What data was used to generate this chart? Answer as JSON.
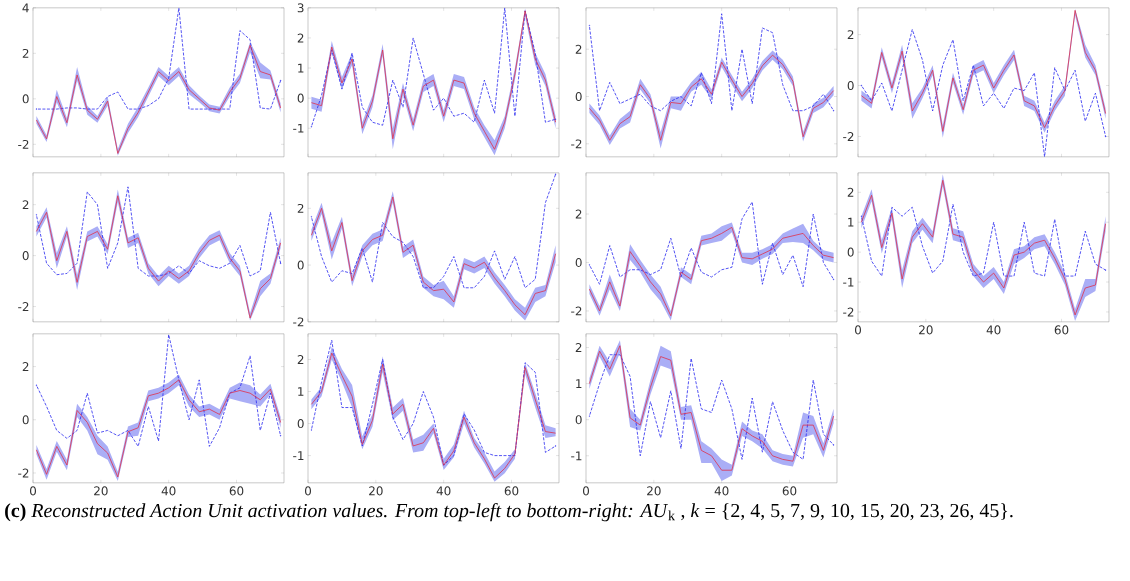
{
  "chart_data": [
    {
      "type": "line",
      "x": [
        1,
        4,
        7,
        10,
        13,
        16,
        19,
        22,
        25,
        28,
        31,
        34,
        37,
        40,
        43,
        46,
        49,
        52,
        55,
        58,
        61,
        64,
        67,
        70,
        73
      ],
      "xlim": [
        0,
        74
      ],
      "xticks": [
        0,
        20,
        40,
        60
      ],
      "ylim": [
        -2.55,
        4
      ],
      "yticks": [
        -2,
        0,
        2,
        4
      ],
      "tick_labels": "y",
      "series": [
        {
          "color": "#2828f0",
          "line_style": "dashed",
          "values": [
            -0.45,
            -0.45,
            -0.45,
            -0.4,
            -0.4,
            -0.45,
            -0.45,
            0.1,
            0.3,
            -0.45,
            -0.45,
            -0.3,
            0.0,
            0.9,
            4.0,
            -0.45,
            -0.45,
            -0.45,
            -0.45,
            -0.45,
            3.0,
            2.6,
            -0.4,
            -0.45,
            0.8
          ]
        },
        {
          "color": "#e0304a",
          "values": [
            -0.93,
            -1.76,
            0.1,
            -1.05,
            1.05,
            -0.5,
            -0.9,
            -0.1,
            -2.4,
            -1.3,
            -0.6,
            0.3,
            1.2,
            0.8,
            1.2,
            0.4,
            0.0,
            -0.4,
            -0.5,
            0.3,
            0.9,
            2.35,
            1.2,
            1.05,
            -0.4
          ],
          "lower": [
            -1.1,
            -1.9,
            -0.15,
            -1.25,
            0.8,
            -0.7,
            -1.05,
            -0.3,
            -2.5,
            -1.5,
            -0.8,
            0.1,
            1.0,
            0.6,
            1.0,
            0.2,
            -0.15,
            -0.55,
            -0.65,
            0.1,
            0.7,
            2.05,
            0.9,
            0.85,
            -0.6
          ],
          "upper": [
            -0.75,
            -1.6,
            0.4,
            -0.85,
            1.4,
            -0.3,
            -0.75,
            0.1,
            -2.2,
            -1.1,
            -0.35,
            0.5,
            1.4,
            1.0,
            1.4,
            0.6,
            0.15,
            -0.25,
            -0.35,
            0.5,
            1.1,
            2.5,
            1.6,
            1.25,
            -0.2
          ]
        }
      ]
    },
    {
      "type": "line",
      "x": [
        1,
        4,
        7,
        10,
        13,
        16,
        19,
        22,
        25,
        28,
        31,
        34,
        37,
        40,
        43,
        46,
        49,
        52,
        55,
        58,
        61,
        64,
        67,
        70,
        73
      ],
      "xlim": [
        0,
        74
      ],
      "xticks": [
        0,
        20,
        40,
        60
      ],
      "ylim": [
        -1.95,
        3
      ],
      "yticks": [
        -1,
        0,
        1,
        2,
        3
      ],
      "tick_labels": "y",
      "series": [
        {
          "color": "#2828f0",
          "line_style": "dashed",
          "values": [
            -0.95,
            0.1,
            1.6,
            0.3,
            1.5,
            -0.3,
            -0.8,
            -0.9,
            0.6,
            -0.3,
            2.0,
            0.8,
            -0.4,
            0.0,
            -0.6,
            -0.5,
            -0.8,
            0.6,
            -0.5,
            3.0,
            -0.6,
            2.9,
            1.5,
            -0.8,
            -0.7
          ]
        },
        {
          "color": "#e0304a",
          "values": [
            -0.15,
            -0.25,
            1.7,
            0.5,
            1.3,
            -1.0,
            -0.1,
            1.6,
            -1.35,
            0.3,
            -0.9,
            0.4,
            0.6,
            -0.6,
            0.6,
            0.5,
            -0.5,
            -1.1,
            -1.7,
            -0.8,
            0.8,
            2.9,
            1.3,
            0.6,
            -0.8
          ],
          "lower": [
            -0.35,
            -0.45,
            1.5,
            0.3,
            1.1,
            -1.2,
            -0.3,
            1.4,
            -1.7,
            0.1,
            -1.1,
            0.2,
            0.4,
            -0.8,
            0.4,
            0.3,
            -0.7,
            -1.3,
            -1.9,
            -1.0,
            0.6,
            2.7,
            1.1,
            0.4,
            -1.0
          ],
          "upper": [
            0.05,
            -0.05,
            1.9,
            0.7,
            1.5,
            -0.8,
            0.1,
            1.8,
            -1.0,
            0.5,
            -0.7,
            0.6,
            0.8,
            -0.4,
            0.8,
            0.7,
            -0.3,
            -0.9,
            -1.4,
            -0.6,
            1.0,
            2.98,
            1.5,
            0.8,
            -0.6
          ]
        }
      ]
    },
    {
      "type": "line",
      "x": [
        1,
        4,
        7,
        10,
        13,
        16,
        19,
        22,
        25,
        28,
        31,
        34,
        37,
        40,
        43,
        46,
        49,
        52,
        55,
        58,
        61,
        64,
        67,
        70,
        73
      ],
      "xlim": [
        0,
        74
      ],
      "xticks": [
        0,
        20,
        40,
        60
      ],
      "ylim": [
        -2.55,
        3.75
      ],
      "yticks": [
        -2,
        0,
        2
      ],
      "tick_labels": "y",
      "series": [
        {
          "color": "#2828f0",
          "line_style": "dashed",
          "values": [
            3.0,
            -0.6,
            0.6,
            -0.3,
            -0.1,
            0.1,
            -0.4,
            -0.6,
            -0.2,
            0.0,
            -0.4,
            1.0,
            -0.3,
            3.5,
            -0.6,
            2.0,
            -0.3,
            2.9,
            2.7,
            0.5,
            -0.6,
            -0.6,
            -0.4,
            0.1,
            -0.6
          ]
        },
        {
          "color": "#e0304a",
          "values": [
            -0.5,
            -1.0,
            -1.85,
            -1.15,
            -0.85,
            0.5,
            -0.1,
            -1.85,
            -0.25,
            -0.3,
            0.4,
            0.75,
            0.1,
            1.45,
            0.7,
            0.0,
            0.55,
            1.3,
            1.75,
            1.35,
            0.65,
            -1.7,
            -0.5,
            -0.25,
            0.25
          ],
          "lower": [
            -0.7,
            -1.2,
            -2.05,
            -1.35,
            -1.1,
            0.3,
            -0.3,
            -2.2,
            -0.5,
            -0.6,
            0.2,
            0.5,
            -0.1,
            1.25,
            0.5,
            -0.2,
            0.35,
            1.1,
            1.55,
            1.15,
            0.45,
            -1.9,
            -0.7,
            -0.45,
            0.05
          ],
          "upper": [
            -0.3,
            -0.8,
            -1.65,
            -0.95,
            -0.6,
            0.75,
            0.1,
            -1.5,
            0.0,
            0.0,
            0.6,
            1.05,
            0.3,
            1.65,
            0.9,
            0.2,
            0.75,
            1.5,
            1.95,
            1.55,
            0.85,
            -1.5,
            -0.3,
            -0.05,
            0.45
          ]
        }
      ]
    },
    {
      "type": "line",
      "x": [
        1,
        4,
        7,
        10,
        13,
        16,
        19,
        22,
        25,
        28,
        31,
        34,
        37,
        40,
        43,
        46,
        49,
        52,
        55,
        58,
        61,
        64,
        67,
        70,
        73
      ],
      "xlim": [
        0,
        74
      ],
      "xticks": [
        0,
        20,
        40,
        60
      ],
      "ylim": [
        -2.8,
        3.05
      ],
      "yticks": [
        -2,
        0,
        2
      ],
      "tick_labels": "y",
      "series": [
        {
          "color": "#2828f0",
          "line_style": "dashed",
          "values": [
            0.0,
            -0.6,
            0.1,
            -1.0,
            0.6,
            2.2,
            1.0,
            -1.0,
            0.8,
            1.8,
            -0.6,
            0.8,
            -0.8,
            -0.3,
            -0.9,
            -0.1,
            -0.2,
            0.5,
            -2.8,
            0.7,
            -0.2,
            0.6,
            -1.4,
            -0.3,
            -2.0
          ]
        },
        {
          "color": "#e0304a",
          "values": [
            -0.4,
            -0.7,
            1.3,
            -0.1,
            1.35,
            -1.0,
            -0.3,
            0.6,
            -1.8,
            0.3,
            -0.95,
            0.6,
            0.8,
            -0.1,
            0.6,
            1.2,
            -0.6,
            -0.8,
            -1.65,
            -0.8,
            -0.2,
            2.95,
            1.3,
            0.6,
            -1.1
          ],
          "lower": [
            -0.6,
            -0.9,
            1.1,
            -0.3,
            1.1,
            -1.3,
            -0.5,
            0.4,
            -2.05,
            0.1,
            -1.15,
            0.4,
            0.6,
            -0.3,
            0.4,
            1.0,
            -0.8,
            -1.0,
            -1.85,
            -1.0,
            -0.4,
            2.75,
            1.1,
            0.4,
            -1.3
          ],
          "upper": [
            -0.2,
            -0.5,
            1.5,
            0.1,
            1.6,
            -0.7,
            -0.1,
            0.8,
            -1.55,
            0.5,
            -0.75,
            0.8,
            1.0,
            0.1,
            0.8,
            1.4,
            -0.4,
            -0.6,
            -1.45,
            -0.6,
            0.0,
            3.0,
            1.6,
            0.8,
            -0.9
          ]
        }
      ]
    },
    {
      "type": "line",
      "x": [
        1,
        4,
        7,
        10,
        13,
        16,
        19,
        22,
        25,
        28,
        31,
        34,
        37,
        40,
        43,
        46,
        49,
        52,
        55,
        58,
        61,
        64,
        67,
        70,
        73
      ],
      "xlim": [
        0,
        74
      ],
      "xticks": [
        0,
        20,
        40,
        60
      ],
      "ylim": [
        -2.6,
        3.25
      ],
      "yticks": [
        -2,
        0,
        2
      ],
      "tick_labels": "y",
      "series": [
        {
          "color": "#2828f0",
          "line_style": "dashed",
          "values": [
            1.6,
            -0.3,
            -0.75,
            -0.7,
            -0.3,
            2.5,
            2.0,
            -0.5,
            0.5,
            2.7,
            -0.5,
            -0.8,
            -0.8,
            -0.7,
            -0.4,
            -0.7,
            -0.2,
            -0.4,
            -0.5,
            -0.3,
            0.4,
            -0.8,
            -0.6,
            1.7,
            -0.3
          ]
        },
        {
          "color": "#e0304a",
          "values": [
            0.95,
            1.7,
            -0.2,
            0.95,
            -1.05,
            0.75,
            0.95,
            0.25,
            2.35,
            0.5,
            0.7,
            -0.5,
            -1.0,
            -0.6,
            -0.9,
            -0.6,
            0.1,
            0.6,
            0.8,
            -0.1,
            -0.6,
            -2.45,
            -1.3,
            -0.9,
            0.5
          ],
          "lower": [
            0.75,
            1.5,
            -0.5,
            0.75,
            -1.35,
            0.55,
            0.75,
            0.05,
            2.1,
            0.3,
            0.5,
            -0.7,
            -1.2,
            -0.8,
            -1.1,
            -0.8,
            -0.1,
            0.4,
            0.6,
            -0.3,
            -0.8,
            -2.55,
            -1.6,
            -1.1,
            0.3
          ],
          "upper": [
            1.15,
            1.9,
            0.1,
            1.15,
            -0.75,
            0.95,
            1.15,
            0.45,
            2.6,
            0.7,
            0.9,
            -0.3,
            -0.8,
            -0.4,
            -0.7,
            -0.4,
            0.3,
            0.8,
            1.0,
            0.1,
            -0.4,
            -2.25,
            -1.0,
            -0.7,
            0.7
          ]
        }
      ]
    },
    {
      "type": "line",
      "x": [
        1,
        4,
        7,
        10,
        13,
        16,
        19,
        22,
        25,
        28,
        31,
        34,
        37,
        40,
        43,
        46,
        49,
        52,
        55,
        58,
        61,
        64,
        67,
        70,
        73
      ],
      "xlim": [
        0,
        74
      ],
      "xticks": [
        0,
        20,
        40,
        60
      ],
      "ylim": [
        -2,
        3.25
      ],
      "yticks": [
        -2,
        0,
        2
      ],
      "tick_labels": "y",
      "series": [
        {
          "color": "#2828f0",
          "line_style": "dashed",
          "values": [
            1.7,
            0.3,
            -0.6,
            -0.2,
            -0.3,
            0.6,
            -0.6,
            1.5,
            1.0,
            0.8,
            0.3,
            -0.8,
            -0.8,
            -0.4,
            0.3,
            -0.8,
            -0.8,
            -0.4,
            0.5,
            -0.5,
            0.3,
            -0.8,
            -0.5,
            2.2,
            3.2
          ]
        },
        {
          "color": "#e0304a",
          "values": [
            1.05,
            2.0,
            0.5,
            1.5,
            -0.55,
            0.5,
            0.9,
            1.05,
            2.4,
            0.45,
            0.7,
            -0.6,
            -0.9,
            -0.85,
            -1.3,
            0.05,
            -0.1,
            0.1,
            -0.45,
            -0.9,
            -1.4,
            -1.75,
            -1.0,
            -0.9,
            0.4
          ],
          "lower": [
            0.85,
            1.8,
            0.2,
            1.3,
            -0.75,
            0.3,
            0.7,
            0.85,
            2.2,
            0.25,
            0.5,
            -0.8,
            -1.1,
            -1.2,
            -1.5,
            -0.15,
            -0.3,
            -0.1,
            -0.65,
            -1.1,
            -1.6,
            -1.95,
            -1.3,
            -1.1,
            0.1
          ],
          "upper": [
            1.25,
            2.2,
            0.8,
            1.7,
            -0.35,
            0.7,
            1.1,
            1.25,
            2.6,
            0.65,
            0.9,
            -0.4,
            -0.7,
            -0.55,
            -1.1,
            0.25,
            0.1,
            0.3,
            -0.25,
            -0.7,
            -1.2,
            -1.5,
            -0.8,
            -0.7,
            0.7
          ]
        }
      ]
    },
    {
      "type": "line",
      "x": [
        1,
        4,
        7,
        10,
        13,
        16,
        19,
        22,
        25,
        28,
        31,
        34,
        37,
        40,
        43,
        46,
        49,
        52,
        55,
        58,
        61,
        64,
        67,
        70,
        73
      ],
      "xlim": [
        0,
        74
      ],
      "xticks": [
        0,
        20,
        40,
        60
      ],
      "ylim": [
        -2.45,
        3.7
      ],
      "yticks": [
        -2,
        0,
        2
      ],
      "tick_labels": "y",
      "series": [
        {
          "color": "#2828f0",
          "line_style": "dashed",
          "values": [
            -0.1,
            -0.9,
            0.7,
            -0.6,
            -0.3,
            -0.3,
            -0.5,
            -0.3,
            1.0,
            -0.6,
            0.6,
            -0.4,
            -0.6,
            -0.3,
            -0.2,
            1.8,
            2.5,
            -0.9,
            0.8,
            -0.5,
            0.3,
            -1.0,
            2.0,
            0.0,
            -0.7
          ]
        },
        {
          "color": "#e0304a",
          "values": [
            -1.1,
            -2.0,
            -0.8,
            -1.8,
            0.45,
            -0.15,
            -0.8,
            -1.3,
            -2.2,
            -0.4,
            -0.7,
            0.9,
            1.0,
            1.2,
            1.45,
            0.2,
            0.15,
            0.35,
            0.55,
            1.0,
            1.1,
            1.2,
            0.7,
            0.3,
            0.2
          ],
          "lower": [
            -1.3,
            -2.2,
            -1.1,
            -2.0,
            0.1,
            -0.4,
            -1.1,
            -1.6,
            -2.4,
            -0.6,
            -0.9,
            0.7,
            0.8,
            0.9,
            1.25,
            0.0,
            -0.1,
            0.15,
            0.35,
            0.8,
            0.85,
            0.8,
            0.5,
            0.1,
            0.0
          ],
          "upper": [
            -0.9,
            -1.8,
            -0.5,
            -1.6,
            0.75,
            0.1,
            -0.5,
            -1.0,
            -2.0,
            -0.2,
            -0.5,
            1.1,
            1.2,
            1.5,
            1.65,
            0.4,
            0.4,
            0.55,
            0.75,
            1.2,
            1.4,
            1.6,
            0.9,
            0.5,
            0.4
          ]
        }
      ]
    },
    {
      "type": "line",
      "x": [
        1,
        4,
        7,
        10,
        13,
        16,
        19,
        22,
        25,
        28,
        31,
        34,
        37,
        40,
        43,
        46,
        49,
        52,
        55,
        58,
        61,
        64,
        67,
        70,
        73
      ],
      "xlim": [
        0,
        74
      ],
      "xticks": [
        0,
        20,
        40,
        60
      ],
      "ylim": [
        -2.33,
        2.65
      ],
      "yticks": [
        -2,
        -1,
        0,
        1,
        2
      ],
      "series": [
        {
          "color": "#2828f0",
          "line_style": "dashed",
          "values": [
            1.2,
            -0.3,
            -0.8,
            1.5,
            1.2,
            1.5,
            0.2,
            -0.7,
            -0.3,
            1.6,
            0.0,
            -0.8,
            -0.7,
            1.0,
            -0.8,
            -0.8,
            1.0,
            -0.7,
            -0.8,
            1.1,
            -0.8,
            -0.8,
            0.7,
            -0.4,
            -0.6
          ]
        },
        {
          "color": "#e0304a",
          "values": [
            1.0,
            1.9,
            0.15,
            1.3,
            -0.9,
            0.5,
            0.95,
            0.5,
            2.4,
            0.6,
            0.5,
            -0.6,
            -1.0,
            -0.7,
            -1.2,
            -0.1,
            0.0,
            0.3,
            0.4,
            -0.2,
            -0.9,
            -2.1,
            -1.2,
            -1.1,
            0.95
          ],
          "lower": [
            0.8,
            1.7,
            -0.05,
            1.1,
            -1.2,
            0.3,
            0.75,
            0.3,
            2.2,
            0.4,
            0.3,
            -0.8,
            -1.2,
            -0.9,
            -1.4,
            -0.4,
            -0.2,
            0.1,
            0.2,
            -0.4,
            -1.1,
            -2.3,
            -1.5,
            -1.3,
            0.7
          ],
          "upper": [
            1.2,
            2.1,
            0.4,
            1.5,
            -0.6,
            0.7,
            1.15,
            0.7,
            2.6,
            0.8,
            0.7,
            -0.4,
            -0.8,
            -0.5,
            -1.0,
            0.1,
            0.2,
            0.5,
            0.6,
            0.0,
            -0.7,
            -1.9,
            -0.9,
            -0.9,
            1.2
          ]
        }
      ]
    },
    {
      "type": "line",
      "x": [
        1,
        4,
        7,
        10,
        13,
        16,
        19,
        22,
        25,
        28,
        31,
        34,
        37,
        40,
        43,
        46,
        49,
        52,
        55,
        58,
        61,
        64,
        67,
        70,
        73
      ],
      "xlim": [
        0,
        74
      ],
      "xticks": [
        0,
        20,
        40,
        60
      ],
      "ylim": [
        -2.37,
        3.23
      ],
      "yticks": [
        -2,
        0,
        2
      ],
      "series": [
        {
          "color": "#2828f0",
          "line_style": "dashed",
          "values": [
            1.3,
            0.5,
            -0.4,
            -0.7,
            -0.4,
            1.0,
            -0.5,
            -0.4,
            -0.6,
            -0.4,
            -1.0,
            0.5,
            -0.8,
            3.2,
            1.5,
            0.0,
            1.5,
            -1.0,
            -0.3,
            1.0,
            1.2,
            2.4,
            -0.4,
            1.0,
            -0.6
          ]
        },
        {
          "color": "#e0304a",
          "values": [
            -1.13,
            -2.05,
            -1.0,
            -1.7,
            0.35,
            -0.1,
            -0.9,
            -1.25,
            -2.15,
            -0.45,
            -0.3,
            0.9,
            1.0,
            1.2,
            1.5,
            0.75,
            0.3,
            0.4,
            0.2,
            1.0,
            1.1,
            1.0,
            0.75,
            1.15,
            -0.1
          ],
          "lower": [
            -1.3,
            -2.25,
            -1.2,
            -1.9,
            0.1,
            -0.4,
            -1.3,
            -1.5,
            -2.3,
            -0.65,
            -0.6,
            0.7,
            0.8,
            1.0,
            1.3,
            0.5,
            0.1,
            0.2,
            0.0,
            0.8,
            0.7,
            0.6,
            0.5,
            0.95,
            -0.3
          ],
          "upper": [
            -0.95,
            -1.85,
            -0.8,
            -1.5,
            0.6,
            0.1,
            -0.6,
            -1.0,
            -1.95,
            -0.25,
            -0.1,
            1.1,
            1.2,
            1.4,
            1.7,
            0.95,
            0.5,
            0.6,
            0.4,
            1.2,
            1.4,
            1.3,
            0.95,
            1.35,
            0.1
          ]
        }
      ]
    },
    {
      "type": "line",
      "x": [
        1,
        4,
        7,
        10,
        13,
        16,
        19,
        22,
        25,
        28,
        31,
        34,
        37,
        40,
        43,
        46,
        49,
        52,
        55,
        58,
        61,
        64,
        67,
        70,
        73
      ],
      "xlim": [
        0,
        74
      ],
      "xticks": [
        0,
        20,
        40,
        60
      ],
      "ylim": [
        -1.85,
        2.8
      ],
      "yticks": [
        -1,
        0,
        1,
        2
      ],
      "series": [
        {
          "color": "#2828f0",
          "line_style": "dashed",
          "values": [
            -0.2,
            1.3,
            2.6,
            0.5,
            0.5,
            -0.7,
            0.6,
            2.0,
            0.2,
            -0.5,
            0.0,
            1.0,
            0.2,
            -1.3,
            -1.0,
            0.3,
            -0.2,
            -0.9,
            -1.0,
            -1.0,
            -1.0,
            1.9,
            1.6,
            -0.9,
            -0.7
          ]
        },
        {
          "color": "#e0304a",
          "values": [
            0.6,
            1.0,
            2.2,
            1.5,
            0.85,
            -0.65,
            0.1,
            1.85,
            0.3,
            0.6,
            -0.7,
            -0.6,
            -0.15,
            -1.3,
            -0.85,
            0.2,
            -0.6,
            -1.1,
            -1.7,
            -1.4,
            -0.95,
            1.75,
            0.75,
            -0.25,
            -0.3
          ],
          "lower": [
            0.45,
            0.85,
            2.0,
            1.3,
            0.5,
            -0.8,
            -0.1,
            1.6,
            0.1,
            0.4,
            -0.9,
            -0.85,
            -0.3,
            -1.45,
            -1.05,
            0.0,
            -0.75,
            -1.25,
            -1.82,
            -1.55,
            -1.1,
            1.55,
            0.5,
            -0.45,
            -0.4
          ],
          "upper": [
            0.75,
            1.15,
            2.4,
            1.7,
            1.2,
            -0.4,
            0.3,
            2.1,
            0.5,
            0.8,
            -0.5,
            -0.35,
            0.0,
            -1.1,
            -0.65,
            0.4,
            -0.45,
            -0.9,
            -1.5,
            -1.2,
            -0.8,
            1.9,
            0.95,
            -0.05,
            -0.15
          ]
        }
      ]
    },
    {
      "type": "line",
      "x": [
        1,
        4,
        7,
        10,
        13,
        16,
        19,
        22,
        25,
        28,
        31,
        34,
        37,
        40,
        43,
        46,
        49,
        52,
        55,
        58,
        61,
        64,
        67,
        70,
        73
      ],
      "xlim": [
        0,
        74
      ],
      "xticks": [
        0,
        20,
        40,
        60
      ],
      "ylim": [
        -1.75,
        2.38
      ],
      "yticks": [
        -1,
        0,
        1,
        2
      ],
      "series": [
        {
          "color": "#2828f0",
          "line_style": "dashed",
          "values": [
            0.1,
            1.0,
            1.8,
            1.8,
            1.2,
            -1.0,
            0.5,
            -0.5,
            0.8,
            -0.8,
            1.7,
            0.3,
            0.2,
            1.1,
            0.3,
            -1.1,
            0.6,
            -0.9,
            0.5,
            -0.3,
            -0.9,
            -1.1,
            1.1,
            -0.4,
            -0.7
          ]
        },
        {
          "color": "#e0304a",
          "values": [
            1.0,
            1.9,
            1.4,
            2.05,
            0.05,
            -0.15,
            0.9,
            1.75,
            1.65,
            0.15,
            0.2,
            -0.85,
            -1.0,
            -1.4,
            -1.4,
            -0.25,
            -0.45,
            -0.6,
            -1.0,
            -1.1,
            -1.15,
            -0.15,
            -0.15,
            -0.85,
            0.1
          ],
          "lower": [
            0.85,
            1.75,
            1.2,
            1.85,
            -0.2,
            -0.3,
            0.7,
            1.5,
            1.4,
            0.0,
            0.0,
            -1.2,
            -1.2,
            -1.7,
            -1.55,
            -0.45,
            -0.6,
            -0.8,
            -1.15,
            -1.25,
            -1.3,
            -0.5,
            -0.4,
            -1.05,
            -0.1
          ],
          "upper": [
            1.15,
            2.05,
            1.6,
            2.2,
            0.3,
            0.0,
            1.1,
            2.05,
            1.9,
            0.35,
            0.4,
            -0.6,
            -0.8,
            -1.1,
            -1.25,
            -0.05,
            -0.3,
            -0.4,
            -0.85,
            -0.95,
            -1.0,
            0.2,
            0.1,
            -0.65,
            0.3
          ]
        }
      ]
    },
    {
      "type": "other",
      "annotations": [
        "**(c)** *Reconstructed Action Unit activation values. From top-left to bottom-right: AU*$_{k}$ , *k* = {2, 4, 5, 7, 9, 10, 15, 20, 23, 26, 45}."
      ]
    }
  ]
}
